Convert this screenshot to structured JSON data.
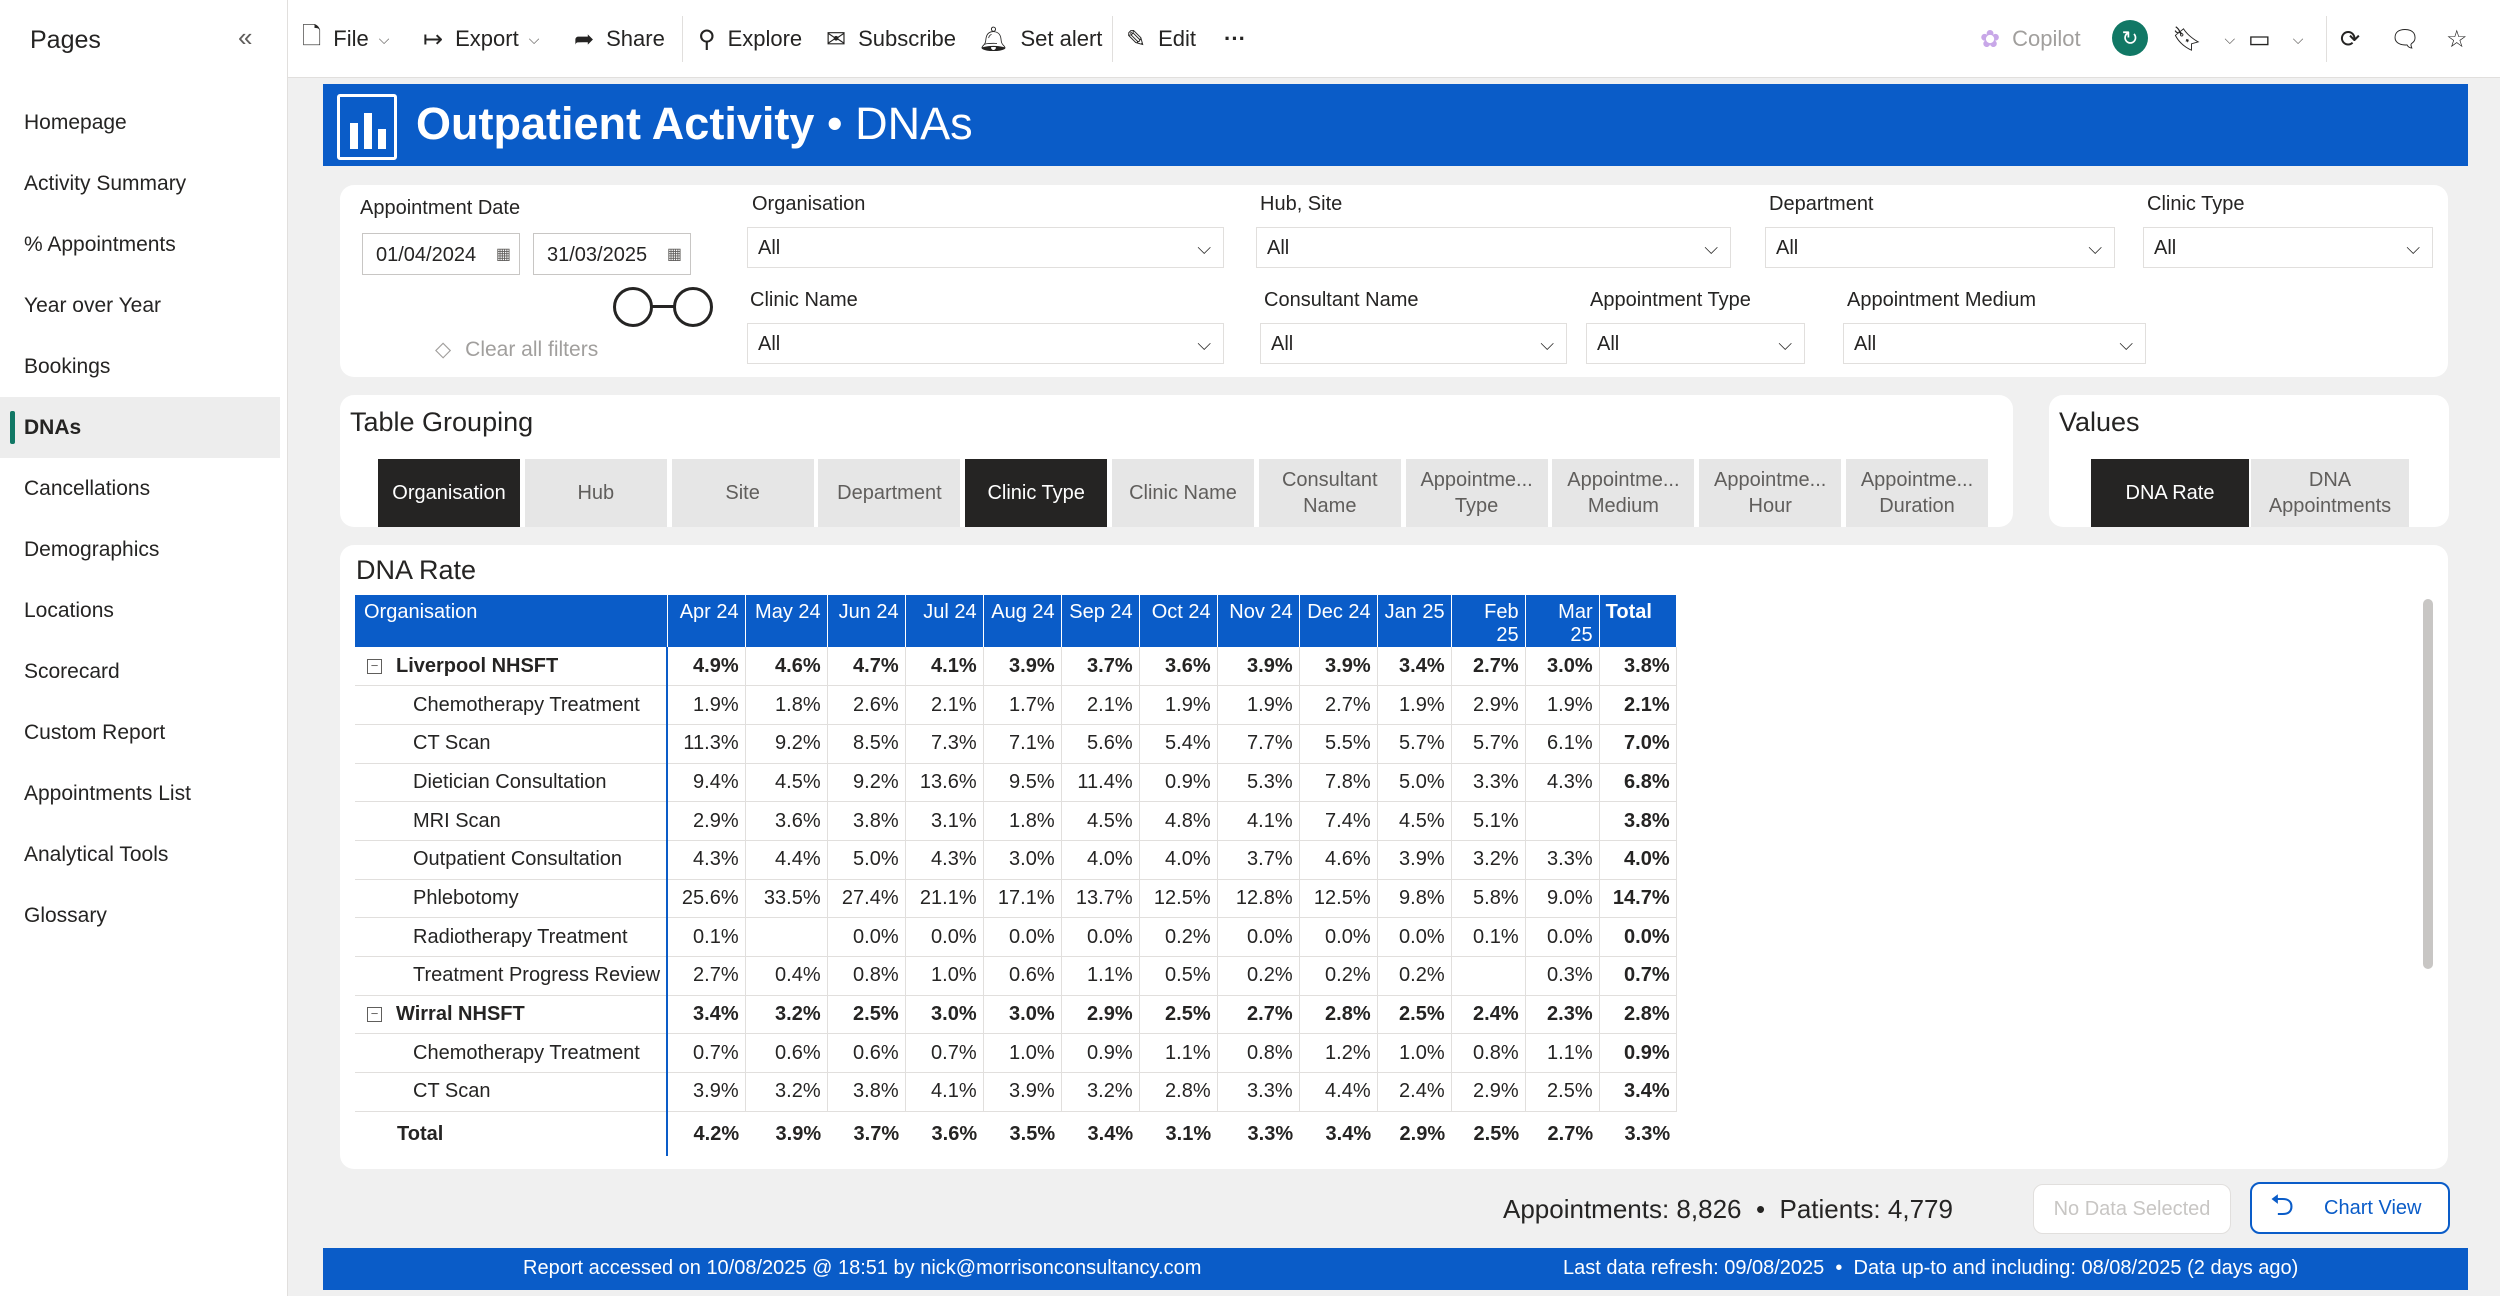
{
  "pages": {
    "title": "Pages",
    "items": [
      "Homepage",
      "Activity Summary",
      "% Appointments",
      "Year over Year",
      "Bookings",
      "DNAs",
      "Cancellations",
      "Demographics",
      "Locations",
      "Scorecard",
      "Custom Report",
      "Appointments List",
      "Analytical Tools",
      "Glossary"
    ],
    "active": "DNAs"
  },
  "toolbar": {
    "file": "File",
    "export": "Export",
    "share": "Share",
    "explore": "Explore",
    "subscribe": "Subscribe",
    "set_alert": "Set alert",
    "edit": "Edit",
    "more": "···",
    "copilot": "Copilot"
  },
  "banner": {
    "title": "Outpatient Activity",
    "separator": " • ",
    "subtitle": "DNAs"
  },
  "filters": {
    "appointment_date_label": "Appointment Date",
    "date_from": "01/04/2024",
    "date_to": "31/03/2025",
    "clear_all": "Clear all filters",
    "organisation_label": "Organisation",
    "organisation_value": "All",
    "hub_site_label": "Hub, Site",
    "hub_site_value": "All",
    "department_label": "Department",
    "department_value": "All",
    "clinic_type_label": "Clinic Type",
    "clinic_type_value": "All",
    "clinic_name_label": "Clinic Name",
    "clinic_name_value": "All",
    "consultant_name_label": "Consultant Name",
    "consultant_name_value": "All",
    "appointment_type_label": "Appointment Type",
    "appointment_type_value": "All",
    "appointment_medium_label": "Appointment Medium",
    "appointment_medium_value": "All"
  },
  "grouping": {
    "title": "Table Grouping",
    "buttons": [
      "Organisation",
      "Hub",
      "Site",
      "Department",
      "Clinic Type",
      "Clinic Name",
      "Consultant Name",
      "Appointme... Type",
      "Appointme... Medium",
      "Appointme... Hour",
      "Appointme... Duration"
    ],
    "selected": [
      "Organisation",
      "Clinic Type"
    ]
  },
  "values": {
    "title": "Values",
    "buttons": [
      "DNA Rate",
      "DNA Appointments"
    ],
    "selected": "DNA Rate"
  },
  "table": {
    "title": "DNA Rate",
    "columns": [
      "Organisation",
      "Apr 24",
      "May 24",
      "Jun 24",
      "Jul 24",
      "Aug 24",
      "Sep 24",
      "Oct 24",
      "Nov 24",
      "Dec 24",
      "Jan 25",
      "Feb 25",
      "Mar 25",
      "Total"
    ],
    "rows": [
      {
        "type": "group",
        "label": "Liverpool NHSFT",
        "values": [
          "4.9%",
          "4.6%",
          "4.7%",
          "4.1%",
          "3.9%",
          "3.7%",
          "3.6%",
          "3.9%",
          "3.9%",
          "3.4%",
          "2.7%",
          "3.0%",
          "3.8%"
        ]
      },
      {
        "type": "sub",
        "label": "Chemotherapy Treatment",
        "values": [
          "1.9%",
          "1.8%",
          "2.6%",
          "2.1%",
          "1.7%",
          "2.1%",
          "1.9%",
          "1.9%",
          "2.7%",
          "1.9%",
          "2.9%",
          "1.9%",
          "2.1%"
        ]
      },
      {
        "type": "sub",
        "label": "CT Scan",
        "values": [
          "11.3%",
          "9.2%",
          "8.5%",
          "7.3%",
          "7.1%",
          "5.6%",
          "5.4%",
          "7.7%",
          "5.5%",
          "5.7%",
          "5.7%",
          "6.1%",
          "7.0%"
        ]
      },
      {
        "type": "sub",
        "label": "Dietician Consultation",
        "values": [
          "9.4%",
          "4.5%",
          "9.2%",
          "13.6%",
          "9.5%",
          "11.4%",
          "0.9%",
          "5.3%",
          "7.8%",
          "5.0%",
          "3.3%",
          "4.3%",
          "6.8%"
        ]
      },
      {
        "type": "sub",
        "label": "MRI Scan",
        "values": [
          "2.9%",
          "3.6%",
          "3.8%",
          "3.1%",
          "1.8%",
          "4.5%",
          "4.8%",
          "4.1%",
          "7.4%",
          "4.5%",
          "5.1%",
          "",
          "3.8%"
        ]
      },
      {
        "type": "sub",
        "label": "Outpatient Consultation",
        "values": [
          "4.3%",
          "4.4%",
          "5.0%",
          "4.3%",
          "3.0%",
          "4.0%",
          "4.0%",
          "3.7%",
          "4.6%",
          "3.9%",
          "3.2%",
          "3.3%",
          "4.0%"
        ]
      },
      {
        "type": "sub",
        "label": "Phlebotomy",
        "values": [
          "25.6%",
          "33.5%",
          "27.4%",
          "21.1%",
          "17.1%",
          "13.7%",
          "12.5%",
          "12.8%",
          "12.5%",
          "9.8%",
          "5.8%",
          "9.0%",
          "14.7%"
        ]
      },
      {
        "type": "sub",
        "label": "Radiotherapy Treatment",
        "values": [
          "0.1%",
          "",
          "0.0%",
          "0.0%",
          "0.0%",
          "0.0%",
          "0.2%",
          "0.0%",
          "0.0%",
          "0.0%",
          "0.1%",
          "0.0%",
          "0.0%"
        ]
      },
      {
        "type": "sub",
        "label": "Treatment Progress Review",
        "values": [
          "2.7%",
          "0.4%",
          "0.8%",
          "1.0%",
          "0.6%",
          "1.1%",
          "0.5%",
          "0.2%",
          "0.2%",
          "0.2%",
          "",
          "0.3%",
          "0.7%"
        ]
      },
      {
        "type": "group",
        "label": "Wirral NHSFT",
        "values": [
          "3.4%",
          "3.2%",
          "2.5%",
          "3.0%",
          "3.0%",
          "2.9%",
          "2.5%",
          "2.7%",
          "2.8%",
          "2.5%",
          "2.4%",
          "2.3%",
          "2.8%"
        ]
      },
      {
        "type": "sub",
        "label": "Chemotherapy Treatment",
        "values": [
          "0.7%",
          "0.6%",
          "0.6%",
          "0.7%",
          "1.0%",
          "0.9%",
          "1.1%",
          "0.8%",
          "1.2%",
          "1.0%",
          "0.8%",
          "1.1%",
          "0.9%"
        ]
      },
      {
        "type": "sub",
        "label": "CT Scan",
        "values": [
          "3.9%",
          "3.2%",
          "3.8%",
          "4.1%",
          "3.9%",
          "3.2%",
          "2.8%",
          "3.3%",
          "4.4%",
          "2.4%",
          "2.9%",
          "2.5%",
          "3.4%"
        ]
      }
    ],
    "total": {
      "label": "Total",
      "values": [
        "4.2%",
        "3.9%",
        "3.7%",
        "3.6%",
        "3.5%",
        "3.4%",
        "3.1%",
        "3.3%",
        "3.4%",
        "2.9%",
        "2.5%",
        "2.7%",
        "3.3%"
      ]
    }
  },
  "stats": {
    "text": "Appointments: 8,826  •  Patients: 4,779"
  },
  "no_data": "No Data Selected",
  "chart_view": "Chart View",
  "footer": {
    "left": "Report accessed on 10/08/2025 @ 18:51 by nick@morrisonconsultancy.com",
    "right": "Last data refresh: 09/08/2025  •  Data up-to and including: 08/08/2025 (2 days ago)"
  },
  "icons": [
    "file-icon",
    "export-icon",
    "share-icon",
    "explore-icon",
    "subscribe-icon",
    "alert-icon",
    "edit-icon",
    "copilot-icon",
    "refresh-icon",
    "bookmark-icon",
    "view-icon",
    "comment-icon",
    "star-icon",
    "calendar-icon",
    "eraser-icon",
    "chevron-down-icon",
    "collapse-icon",
    "undo-arrow-icon",
    "chart-logo-icon"
  ],
  "colors": {
    "brand": "#0a5cc8",
    "selected_button": "#252423",
    "nav_accent": "#117865"
  }
}
